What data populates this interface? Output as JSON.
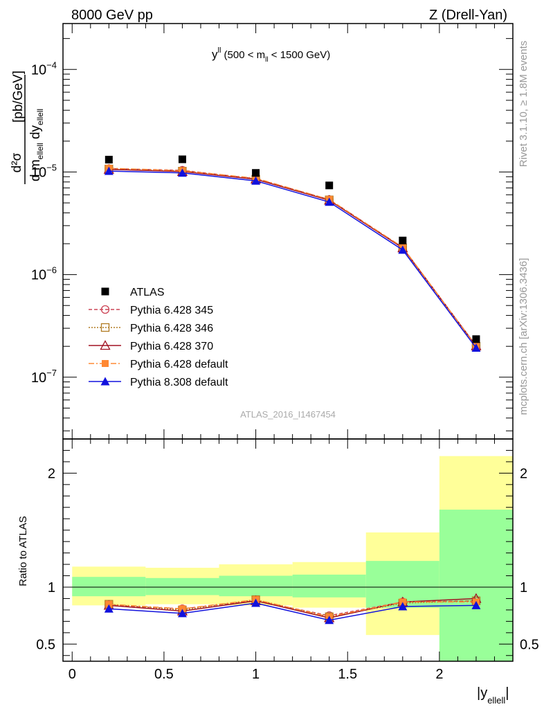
{
  "header": {
    "left": "8000 GeV pp",
    "right": "Z (Drell-Yan)"
  },
  "side_texts": {
    "rivet": "Rivet 3.1.10, ≥ 1.8M events",
    "mcplots": "mcplots.cern.ch [arXiv:1306.3436]"
  },
  "main_panel": {
    "title_main": "y",
    "title_sup": "ll",
    "title_rest": " (500 < m",
    "title_sub": "ll",
    "title_end": " < 1500 GeV)",
    "ylabel": {
      "num": "d²σ",
      "den_d": "d m",
      "den_sub1": "ellell",
      "den_dy": " dy",
      "den_sub2": "ellell",
      "units": "[pb/GeV]"
    },
    "yscale": "log",
    "ytick_labels": [
      {
        "base": "10",
        "exp": "−4"
      },
      {
        "base": "10",
        "exp": "−5"
      },
      {
        "base": "10",
        "exp": "−6"
      },
      {
        "base": "10",
        "exp": "−7"
      }
    ],
    "watermark": "ATLAS_2016_I1467454"
  },
  "ratio_panel": {
    "ylabel": "Ratio to ATLAS",
    "ytick_labels": [
      "0.5",
      "1",
      "2"
    ]
  },
  "xaxis": {
    "label_main": "|y",
    "label_sub": "ellell",
    "label_end": "|",
    "tick_labels": [
      "0",
      "0.5",
      "1",
      "1.5",
      "2"
    ]
  },
  "chart_data": {
    "type": "scatter",
    "x_range": [
      -0.05,
      2.4
    ],
    "y_range_main": [
      2.5e-08,
      0.00028
    ],
    "y_range_ratio": [
      0.35,
      2.3
    ],
    "x": [
      0.2,
      0.6,
      1.0,
      1.4,
      1.8,
      2.2
    ],
    "bins": [
      [
        0.0,
        0.4
      ],
      [
        0.4,
        0.8
      ],
      [
        0.8,
        1.2
      ],
      [
        1.2,
        1.6
      ],
      [
        1.6,
        2.0
      ],
      [
        2.0,
        2.4
      ]
    ],
    "data": {
      "name": "ATLAS",
      "values": [
        1.32e-05,
        1.33e-05,
        9.8e-06,
        7.4e-06,
        2.15e-06,
        2.35e-07
      ],
      "band_inner": [
        [
          0.92,
          1.09
        ],
        [
          0.93,
          1.08
        ],
        [
          0.92,
          1.1
        ],
        [
          0.91,
          1.11
        ],
        [
          0.82,
          1.23
        ],
        [
          0.35,
          1.68
        ]
      ],
      "band_outer": [
        [
          0.84,
          1.18
        ],
        [
          0.85,
          1.17
        ],
        [
          0.84,
          1.2
        ],
        [
          0.82,
          1.22
        ],
        [
          0.58,
          1.48
        ],
        [
          0.35,
          2.15
        ]
      ]
    },
    "series": [
      {
        "name": "Pythia 6.428 345",
        "color": "#cc4455",
        "marker": "circle-open",
        "dash": "5,3",
        "values": [
          1.08e-05,
          1.04e-05,
          8.6e-06,
          5.4e-06,
          1.84e-06,
          2.02e-07
        ],
        "ratio": [
          0.84,
          0.81,
          0.88,
          0.75,
          0.87,
          0.88
        ]
      },
      {
        "name": "Pythia 6.428 346",
        "color": "#b07a20",
        "marker": "square-open",
        "dash": "2,2",
        "values": [
          1.07e-05,
          1.02e-05,
          8.5e-06,
          5.35e-06,
          1.82e-06,
          2e-07
        ],
        "ratio": [
          0.85,
          0.8,
          0.89,
          0.74,
          0.86,
          0.88
        ]
      },
      {
        "name": "Pythia 6.428 370",
        "color": "#a01020",
        "marker": "triangle-open",
        "dash": "",
        "values": [
          1.06e-05,
          1.01e-05,
          8.5e-06,
          5.3e-06,
          1.82e-06,
          2.02e-07
        ],
        "ratio": [
          0.84,
          0.79,
          0.88,
          0.73,
          0.87,
          0.9
        ]
      },
      {
        "name": "Pythia 6.428 default",
        "color": "#ff8833",
        "marker": "square-filled",
        "dash": "8,3,2,3",
        "values": [
          1.09e-05,
          1.03e-05,
          8.7e-06,
          5.4e-06,
          1.85e-06,
          2e-07
        ],
        "ratio": [
          0.85,
          0.81,
          0.89,
          0.74,
          0.87,
          0.87
        ]
      },
      {
        "name": "Pythia 8.308 default",
        "color": "#1111dd",
        "marker": "triangle-filled",
        "dash": "",
        "values": [
          1.02e-05,
          9.8e-06,
          8.2e-06,
          5.1e-06,
          1.74e-06,
          1.93e-07
        ],
        "ratio": [
          0.81,
          0.77,
          0.86,
          0.71,
          0.83,
          0.84
        ]
      }
    ]
  }
}
